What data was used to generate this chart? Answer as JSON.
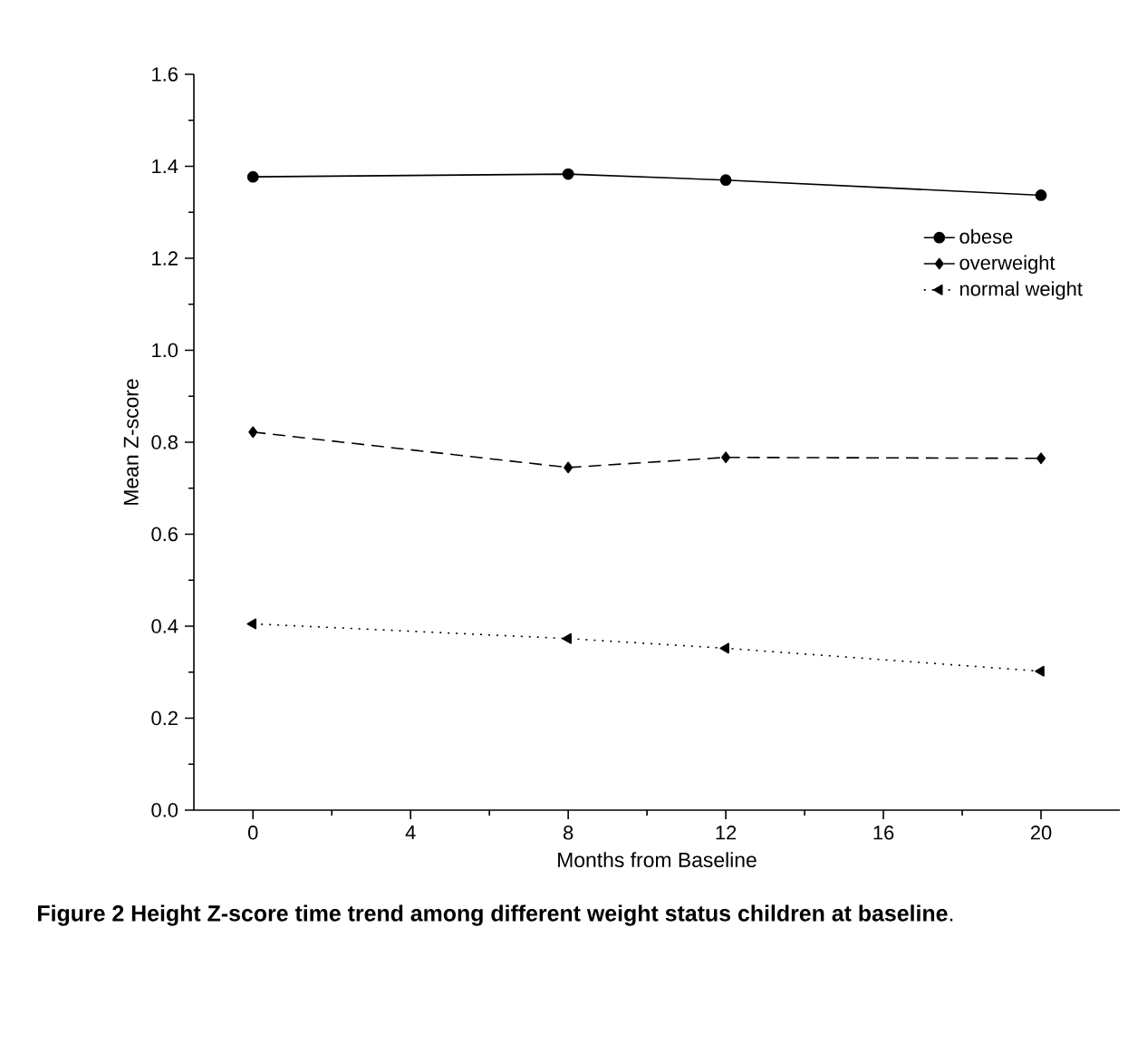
{
  "chart_data": {
    "type": "line",
    "title": "**Figure 2 Height Z-score time trend among different weight status children at baseline**.",
    "xlabel": "Months from Baseline",
    "ylabel": "Mean Z-score",
    "x": [
      0,
      8,
      12,
      20
    ],
    "series": [
      {
        "name": "obese",
        "color": "#000000",
        "values": [
          1.377,
          1.383,
          1.37,
          1.337
        ],
        "marker": "circle",
        "line_style": "solid"
      },
      {
        "name": "overweight",
        "color": "#000000",
        "values": [
          0.822,
          0.745,
          0.767,
          0.765
        ],
        "marker": "diamond",
        "line_style": "dashed"
      },
      {
        "name": "normal weight",
        "color": "#000000",
        "values": [
          0.405,
          0.373,
          0.352,
          0.302
        ],
        "marker": "triangle",
        "line_style": "dotted"
      }
    ],
    "xlim": [
      -1.5,
      22
    ],
    "xticks": [
      0,
      4,
      8,
      12,
      16,
      20
    ],
    "ylim": [
      0,
      1.6
    ],
    "yticks": [
      {
        "value": 0,
        "label": "0.0"
      },
      0.2,
      0.4,
      0.6,
      0.8,
      {
        "value": 1,
        "label": "1.0"
      },
      1.2,
      1.4,
      1.6
    ],
    "grid": false,
    "legend": "top right"
  }
}
